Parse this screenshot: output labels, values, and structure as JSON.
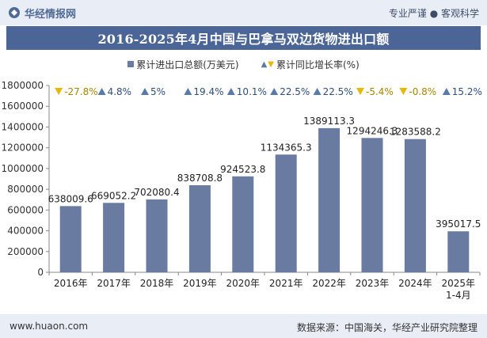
{
  "header": {
    "brand": "华经情报网",
    "tagline": "专业严谨 ● 客观科学"
  },
  "title": "2016-2025年4月中国与巴拿马双边货物进出口额",
  "legend": {
    "series1": "累计进出口总额(万美元)",
    "series2": "累计同比增长率(%)"
  },
  "colors": {
    "bar": "#6a7ba2",
    "up": "#5a7aa8",
    "down": "#e6b800",
    "title_bg": "#4a6596"
  },
  "chart_data": {
    "type": "bar",
    "categories": [
      "2016年",
      "2017年",
      "2018年",
      "2019年",
      "2020年",
      "2021年",
      "2022年",
      "2023年",
      "2024年",
      "2025年\n1-4月"
    ],
    "series": [
      {
        "name": "累计进出口总额(万美元)",
        "values": [
          638009.6,
          669052.2,
          702080.4,
          838708.8,
          924523.8,
          1134365.3,
          1389113.3,
          1294246.3,
          1283588.2,
          395017.5
        ]
      },
      {
        "name": "累计同比增长率(%)",
        "values": [
          -27.8,
          4.8,
          5,
          19.4,
          10.1,
          22.5,
          22.5,
          -5.4,
          -0.8,
          15.2
        ]
      }
    ],
    "bar_labels": [
      "638009.6",
      "669052.2",
      "702080.4",
      "838708.8",
      "924523.8",
      "1134365.3",
      "1389113.3",
      "1294246.3",
      "1283588.2",
      "395017.5"
    ],
    "growth_labels": [
      "-27.8%",
      "4.8%",
      "5%",
      "19.4%",
      "10.1%",
      "22.5%",
      "22.5%",
      "-5.4%",
      "-0.8%",
      "15.2%"
    ],
    "ylim": [
      0,
      1800000
    ],
    "yticks": [
      0,
      200000,
      400000,
      600000,
      800000,
      1000000,
      1200000,
      1400000,
      1600000,
      1800000
    ],
    "grid": false
  },
  "footer": {
    "url": "www.huaon.com",
    "source": "数据来源：中国海关，华经产业研究院整理"
  }
}
